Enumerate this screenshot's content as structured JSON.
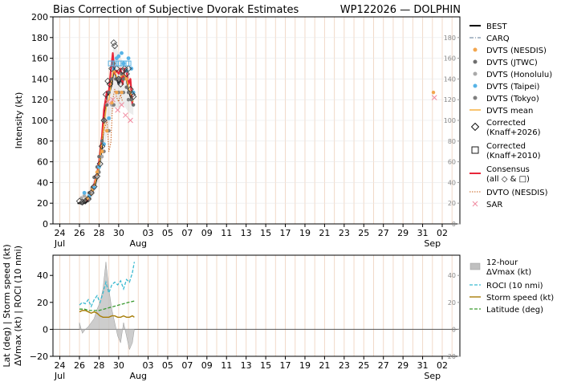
{
  "header": {
    "title": "Bias Correction of Subjective Dvorak Estimates",
    "storm": "WP122026 — DOLPHIN"
  },
  "colors": {
    "best": "#000000",
    "carq": "#5f7a96",
    "nesdis": "#f2a64e",
    "jtwc": "#6e6e6e",
    "honolulu": "#a9a9a9",
    "taipei": "#57b3e6",
    "tokyo": "#7f7f7f",
    "dvts_mean": "#f5b041",
    "consensus": "#e8273a",
    "dvto": "#c8601a",
    "sar": "#f08aa0",
    "roci": "#3bbad0",
    "storm_speed": "#a77d08",
    "latitude": "#3a9a2f",
    "delta_vmax_fill": "#c0c0c0",
    "grid": "#f1d9c8"
  },
  "chart_data": [
    {
      "type": "line",
      "ylabel": "Intensity (kt)",
      "ylim": [
        0,
        200
      ],
      "yticks": [
        "0",
        "20",
        "40",
        "60",
        "80",
        "100",
        "120",
        "140",
        "160",
        "180",
        "200"
      ],
      "right_axis_ticks": [
        "0",
        "20",
        "40",
        "60",
        "80",
        "100",
        "120",
        "140",
        "160",
        "180"
      ],
      "xlim": [
        23.3,
        64.8
      ],
      "xticks": [
        {
          "x": 24,
          "label": "24"
        },
        {
          "x": 26,
          "label": "26"
        },
        {
          "x": 28,
          "label": "28"
        },
        {
          "x": 30,
          "label": "30"
        },
        {
          "x": 33,
          "label": "03"
        },
        {
          "x": 35,
          "label": "05"
        },
        {
          "x": 37,
          "label": "07"
        },
        {
          "x": 39,
          "label": "09"
        },
        {
          "x": 41,
          "label": "11"
        },
        {
          "x": 43,
          "label": "13"
        },
        {
          "x": 45,
          "label": "15"
        },
        {
          "x": 47,
          "label": "17"
        },
        {
          "x": 49,
          "label": "19"
        },
        {
          "x": 51,
          "label": "21"
        },
        {
          "x": 53,
          "label": "23"
        },
        {
          "x": 55,
          "label": "25"
        },
        {
          "x": 57,
          "label": "27"
        },
        {
          "x": 59,
          "label": "29"
        },
        {
          "x": 61,
          "label": "31"
        },
        {
          "x": 63,
          "label": "02"
        }
      ],
      "month_labels": [
        {
          "x": 24,
          "label": "Jul"
        },
        {
          "x": 32,
          "label": "Aug"
        },
        {
          "x": 62,
          "label": "Sep"
        }
      ],
      "legend": [
        {
          "key": "best",
          "label": "BEST"
        },
        {
          "key": "carq",
          "label": "CARQ"
        },
        {
          "key": "nesdis",
          "label": "DVTS (NESDIS)"
        },
        {
          "key": "jtwc",
          "label": "DVTS (JTWC)"
        },
        {
          "key": "honolulu",
          "label": "DVTS (Honolulu)"
        },
        {
          "key": "taipei",
          "label": "DVTS (Taipei)"
        },
        {
          "key": "tokyo",
          "label": "DVTS (Tokyo)"
        },
        {
          "key": "dvts_mean",
          "label": "DVTS mean"
        },
        {
          "key": "corr_diamond",
          "label": "Corrected",
          "label2": "(Knaff+2026)"
        },
        {
          "key": "corr_square",
          "label": "Corrected",
          "label2": "(Knaff+2010)"
        },
        {
          "key": "consensus",
          "label": "Consensus",
          "label2": "(all ◇ & □)"
        },
        {
          "key": "dvto",
          "label": "DVTO (NESDIS)"
        },
        {
          "key": "sar",
          "label": "SAR"
        }
      ],
      "series": [
        {
          "key": "best",
          "name": "BEST",
          "x": [
            25.8,
            26.2,
            26.5,
            26.8,
            27.0,
            27.3,
            27.5,
            27.8,
            28.0,
            28.3,
            28.5,
            28.8,
            29.0,
            29.3,
            29.5,
            29.8,
            30.0,
            30.3,
            30.5,
            30.8,
            31.0,
            31.3,
            31.5
          ],
          "y": [
            20,
            20,
            20,
            22,
            25,
            30,
            35,
            45,
            55,
            75,
            100,
            125,
            125,
            135,
            150,
            140,
            135,
            140,
            145,
            140,
            130,
            120,
            120
          ]
        },
        {
          "key": "carq",
          "name": "CARQ",
          "x": [
            27.8,
            28.0,
            28.3,
            28.5,
            28.8,
            29.0,
            29.3,
            29.5,
            29.8,
            30.0,
            30.3,
            30.5,
            30.8,
            31.0,
            31.3,
            31.5
          ],
          "y": [
            45,
            55,
            80,
            105,
            125,
            125,
            138,
            148,
            140,
            135,
            140,
            145,
            140,
            130,
            120,
            118
          ]
        },
        {
          "key": "consensus",
          "name": "Consensus",
          "x": [
            26.5,
            26.8,
            27.0,
            27.3,
            27.5,
            27.8,
            28.0,
            28.3,
            28.5,
            28.8,
            29.0,
            29.2,
            29.4,
            29.6,
            29.8,
            30.0,
            30.2,
            30.4,
            30.6,
            30.8,
            31.0,
            31.2,
            31.4,
            31.5
          ],
          "y": [
            22,
            23,
            26,
            32,
            38,
            48,
            60,
            85,
            110,
            128,
            128,
            148,
            165,
            145,
            148,
            145,
            150,
            135,
            150,
            148,
            135,
            140,
            115,
            115
          ]
        },
        {
          "key": "dvts_mean",
          "name": "DVTS mean",
          "x": [
            26.5,
            27.0,
            27.5,
            28.0,
            28.5,
            28.8,
            29.0,
            29.3,
            29.5,
            29.8,
            30.0,
            30.3,
            30.5,
            30.8,
            31.0,
            31.3,
            31.5
          ],
          "y": [
            22,
            25,
            36,
            55,
            95,
            118,
            120,
            140,
            150,
            142,
            140,
            143,
            145,
            140,
            132,
            122,
            118
          ]
        },
        {
          "key": "dvto",
          "name": "DVTO (NESDIS)",
          "x": [
            28.0,
            28.3,
            28.5,
            28.8,
            29.0,
            29.2,
            29.4,
            29.6,
            29.8,
            30.0,
            30.2,
            30.4
          ],
          "y": [
            65,
            80,
            90,
            100,
            70,
            78,
            120,
            130,
            122,
            118,
            125,
            118
          ]
        },
        {
          "key": "corr_squares",
          "name": "Corrected (Knaff+2010)",
          "x": [
            29.2,
            29.5,
            29.7,
            30.0,
            30.2,
            30.5,
            30.8,
            31.0
          ],
          "y": [
            155,
            155,
            155,
            155,
            155,
            155,
            155,
            155
          ]
        }
      ],
      "points": {
        "jtwc": [
          [
            26.2,
            20
          ],
          [
            26.5,
            22
          ],
          [
            26.8,
            25
          ],
          [
            27.0,
            30
          ],
          [
            27.3,
            35
          ],
          [
            27.5,
            45
          ],
          [
            27.8,
            55
          ],
          [
            28.0,
            65
          ],
          [
            28.3,
            80
          ],
          [
            28.5,
            100
          ],
          [
            28.8,
            115
          ],
          [
            29.0,
            127
          ],
          [
            29.3,
            140
          ],
          [
            29.5,
            155
          ],
          [
            29.7,
            140
          ],
          [
            30.0,
            140
          ],
          [
            30.3,
            145
          ],
          [
            30.5,
            140
          ],
          [
            30.8,
            132
          ],
          [
            31.0,
            127
          ],
          [
            31.3,
            120
          ],
          [
            31.5,
            115
          ]
        ],
        "honolulu": [
          [
            26.2,
            25
          ],
          [
            26.5,
            27
          ],
          [
            26.8,
            25
          ],
          [
            27.3,
            30
          ],
          [
            27.8,
            45
          ],
          [
            28.3,
            65
          ],
          [
            28.8,
            90
          ],
          [
            29.3,
            115
          ],
          [
            29.8,
            127
          ],
          [
            30.3,
            127
          ],
          [
            30.8,
            140
          ],
          [
            31.3,
            127
          ]
        ],
        "taipei": [
          [
            26.5,
            30
          ],
          [
            27.0,
            27
          ],
          [
            27.5,
            35
          ],
          [
            28.0,
            55
          ],
          [
            28.5,
            77
          ],
          [
            29.0,
            102
          ],
          [
            29.5,
            150
          ],
          [
            29.8,
            160
          ],
          [
            30.0,
            162
          ],
          [
            30.3,
            165
          ],
          [
            30.5,
            155
          ],
          [
            30.8,
            148
          ],
          [
            31.0,
            160
          ],
          [
            31.3,
            150
          ],
          [
            31.5,
            127
          ]
        ],
        "tokyo": [
          [
            26.5,
            22
          ],
          [
            27.0,
            25
          ],
          [
            27.5,
            35
          ],
          [
            28.0,
            50
          ],
          [
            28.5,
            70
          ],
          [
            29.0,
            90
          ],
          [
            29.5,
            115
          ],
          [
            30.0,
            127
          ],
          [
            30.5,
            127
          ],
          [
            31.0,
            120
          ]
        ],
        "nesdis": [
          [
            26.8,
            25
          ],
          [
            27.3,
            33
          ],
          [
            27.8,
            50
          ],
          [
            28.3,
            70
          ],
          [
            28.8,
            90
          ],
          [
            29.3,
            117
          ],
          [
            29.8,
            127
          ],
          [
            30.3,
            127
          ],
          [
            30.8,
            140
          ],
          [
            31.3,
            127
          ],
          [
            62.1,
            127
          ]
        ],
        "corr_diamond": [
          [
            26.0,
            22
          ],
          [
            26.3,
            21
          ],
          [
            26.6,
            22
          ],
          [
            26.9,
            24
          ],
          [
            27.2,
            30
          ],
          [
            27.5,
            36
          ],
          [
            27.8,
            46
          ],
          [
            28.1,
            58
          ],
          [
            28.3,
            75
          ],
          [
            28.5,
            100
          ],
          [
            28.7,
            125
          ],
          [
            28.9,
            138
          ],
          [
            29.1,
            135
          ],
          [
            29.3,
            150
          ],
          [
            29.5,
            175
          ],
          [
            29.6,
            172
          ],
          [
            29.8,
            150
          ],
          [
            30.0,
            140
          ],
          [
            30.2,
            135
          ],
          [
            30.4,
            148
          ],
          [
            30.6,
            150
          ],
          [
            30.8,
            145
          ],
          [
            31.0,
            150
          ],
          [
            31.2,
            130
          ],
          [
            31.4,
            125
          ],
          [
            31.5,
            123
          ]
        ],
        "sar": [
          [
            29.4,
            120
          ],
          [
            29.9,
            110
          ],
          [
            30.3,
            115
          ],
          [
            30.7,
            105
          ],
          [
            31.2,
            100
          ],
          [
            28.9,
            118
          ],
          [
            62.2,
            122
          ]
        ]
      },
      "envelope": {
        "x": [
          26.2,
          26.5,
          27.0,
          27.5,
          28.0,
          28.5,
          29.0,
          29.5,
          30.0,
          30.5,
          31.0,
          31.5
        ],
        "y_low": [
          18,
          19,
          22,
          28,
          42,
          70,
          95,
          112,
          112,
          115,
          108,
          105
        ],
        "y_high": [
          28,
          30,
          32,
          45,
          65,
          95,
          135,
          175,
          165,
          155,
          150,
          128
        ]
      }
    },
    {
      "type": "line",
      "ylabel": "Lat (deg) | Storm speed (kt)\nΔVmax (kt) | ROCI (10 nmi)",
      "ylabel_lines": [
        "Lat (deg) | Storm speed (kt)",
        "ΔVmax (kt) | ROCI (10 nmi)"
      ],
      "ylim": [
        -20,
        55
      ],
      "yticks": [
        "−20",
        "0",
        "20",
        "40"
      ],
      "right_axis_ticks": [
        "−20",
        "0",
        "20",
        "40"
      ],
      "legend": [
        {
          "key": "delta_vmax",
          "label": "12-hour",
          "label2": "ΔVmax (kt)"
        },
        {
          "key": "roci",
          "label": "ROCI (10 nmi)"
        },
        {
          "key": "storm_speed",
          "label": "Storm speed (kt)"
        },
        {
          "key": "latitude",
          "label": "Latitude (deg)"
        }
      ],
      "series": [
        {
          "key": "roci",
          "name": "ROCI (10 nmi)",
          "x": [
            26.0,
            26.3,
            26.6,
            26.9,
            27.2,
            27.5,
            27.8,
            28.1,
            28.4,
            28.7,
            29.0,
            29.3,
            29.6,
            29.9,
            30.2,
            30.5,
            30.8,
            31.1,
            31.4,
            31.6
          ],
          "y": [
            18,
            20,
            19,
            22,
            17,
            22,
            25,
            20,
            27,
            35,
            27,
            33,
            35,
            33,
            36,
            30,
            37,
            35,
            42,
            50
          ]
        },
        {
          "key": "storm_speed",
          "name": "Storm speed (kt)",
          "x": [
            26.0,
            26.3,
            26.6,
            26.9,
            27.2,
            27.5,
            27.8,
            28.1,
            28.4,
            28.7,
            29.0,
            29.3,
            29.6,
            29.9,
            30.2,
            30.5,
            30.8,
            31.1,
            31.4,
            31.6
          ],
          "y": [
            13,
            14,
            14,
            13,
            12,
            13,
            12,
            10,
            9,
            9,
            9,
            10,
            10,
            9,
            9,
            10,
            9,
            9,
            10,
            9
          ]
        },
        {
          "key": "latitude",
          "name": "Latitude (deg)",
          "x": [
            26.0,
            26.5,
            27.0,
            27.5,
            28.0,
            28.5,
            29.0,
            29.5,
            30.0,
            30.5,
            31.0,
            31.6
          ],
          "y": [
            15,
            15,
            14,
            14,
            14,
            15,
            16,
            17,
            18,
            19,
            20,
            21
          ]
        }
      ],
      "delta_vmax": {
        "x": [
          26.0,
          26.3,
          26.6,
          26.9,
          27.2,
          27.5,
          27.8,
          28.1,
          28.4,
          28.7,
          29.0,
          29.3,
          29.6,
          29.9,
          30.2,
          30.5,
          30.8,
          31.1,
          31.4,
          31.6
        ],
        "y": [
          5,
          -3,
          0,
          2,
          5,
          8,
          15,
          20,
          30,
          50,
          30,
          15,
          5,
          -5,
          -10,
          5,
          -5,
          -15,
          -10,
          0
        ]
      }
    }
  ]
}
